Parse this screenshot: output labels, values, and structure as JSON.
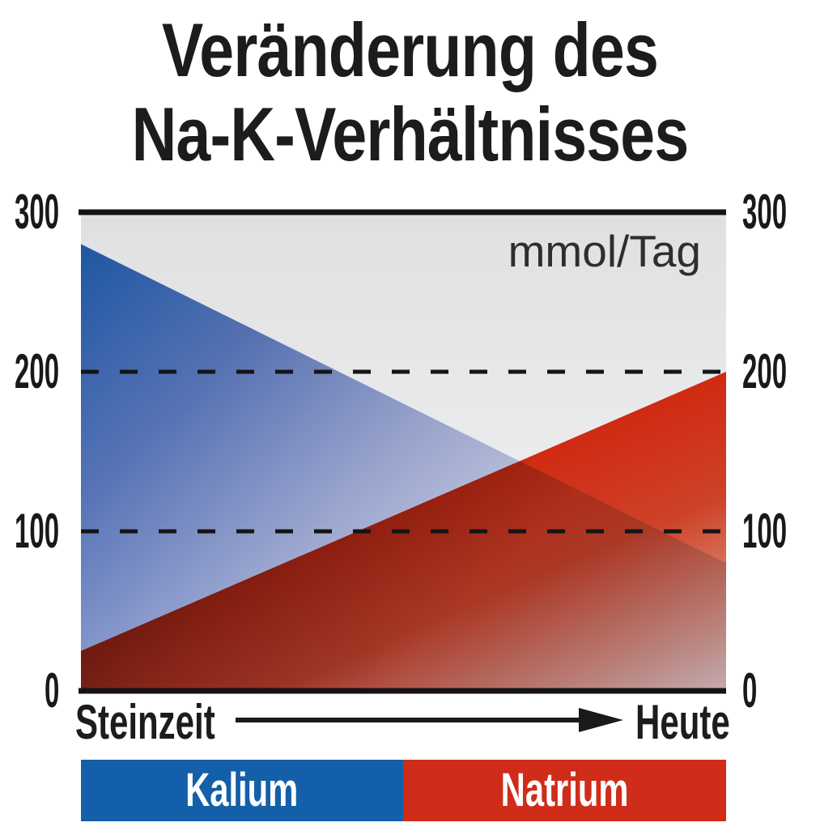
{
  "title": {
    "line1": "Veränderung des",
    "line2": "Na-K-Verhältnisses"
  },
  "chart_data": {
    "type": "area",
    "title": "Veränderung des Na-K-Verhältnisses",
    "unit_label": "mmol/Tag",
    "ylim": [
      0,
      300
    ],
    "yticks": [
      300,
      200,
      100,
      0
    ],
    "ytick_sides": [
      "left",
      "right"
    ],
    "dashed_gridlines_at": [
      200,
      100
    ],
    "grid": "horizontal-dashed",
    "x_axis": {
      "start_label": "Steinzeit",
      "end_label": "Heute",
      "style": "arrow-from-start-to-end"
    },
    "categories": [
      "Steinzeit",
      "Heute"
    ],
    "series": [
      {
        "name": "Kalium",
        "color": "#135fa9",
        "values": [
          280,
          80
        ]
      },
      {
        "name": "Natrium",
        "color": "#d02c1a",
        "values": [
          25,
          200
        ]
      }
    ],
    "legend": {
      "position": "bottom",
      "items": [
        {
          "label": "Kalium",
          "color": "#135fa9"
        },
        {
          "label": "Natrium",
          "color": "#d02c1a"
        }
      ]
    }
  },
  "colors": {
    "kalium_blue": "#135fa9",
    "natrium_red": "#d02c1a",
    "text": "#1b1b1b"
  }
}
